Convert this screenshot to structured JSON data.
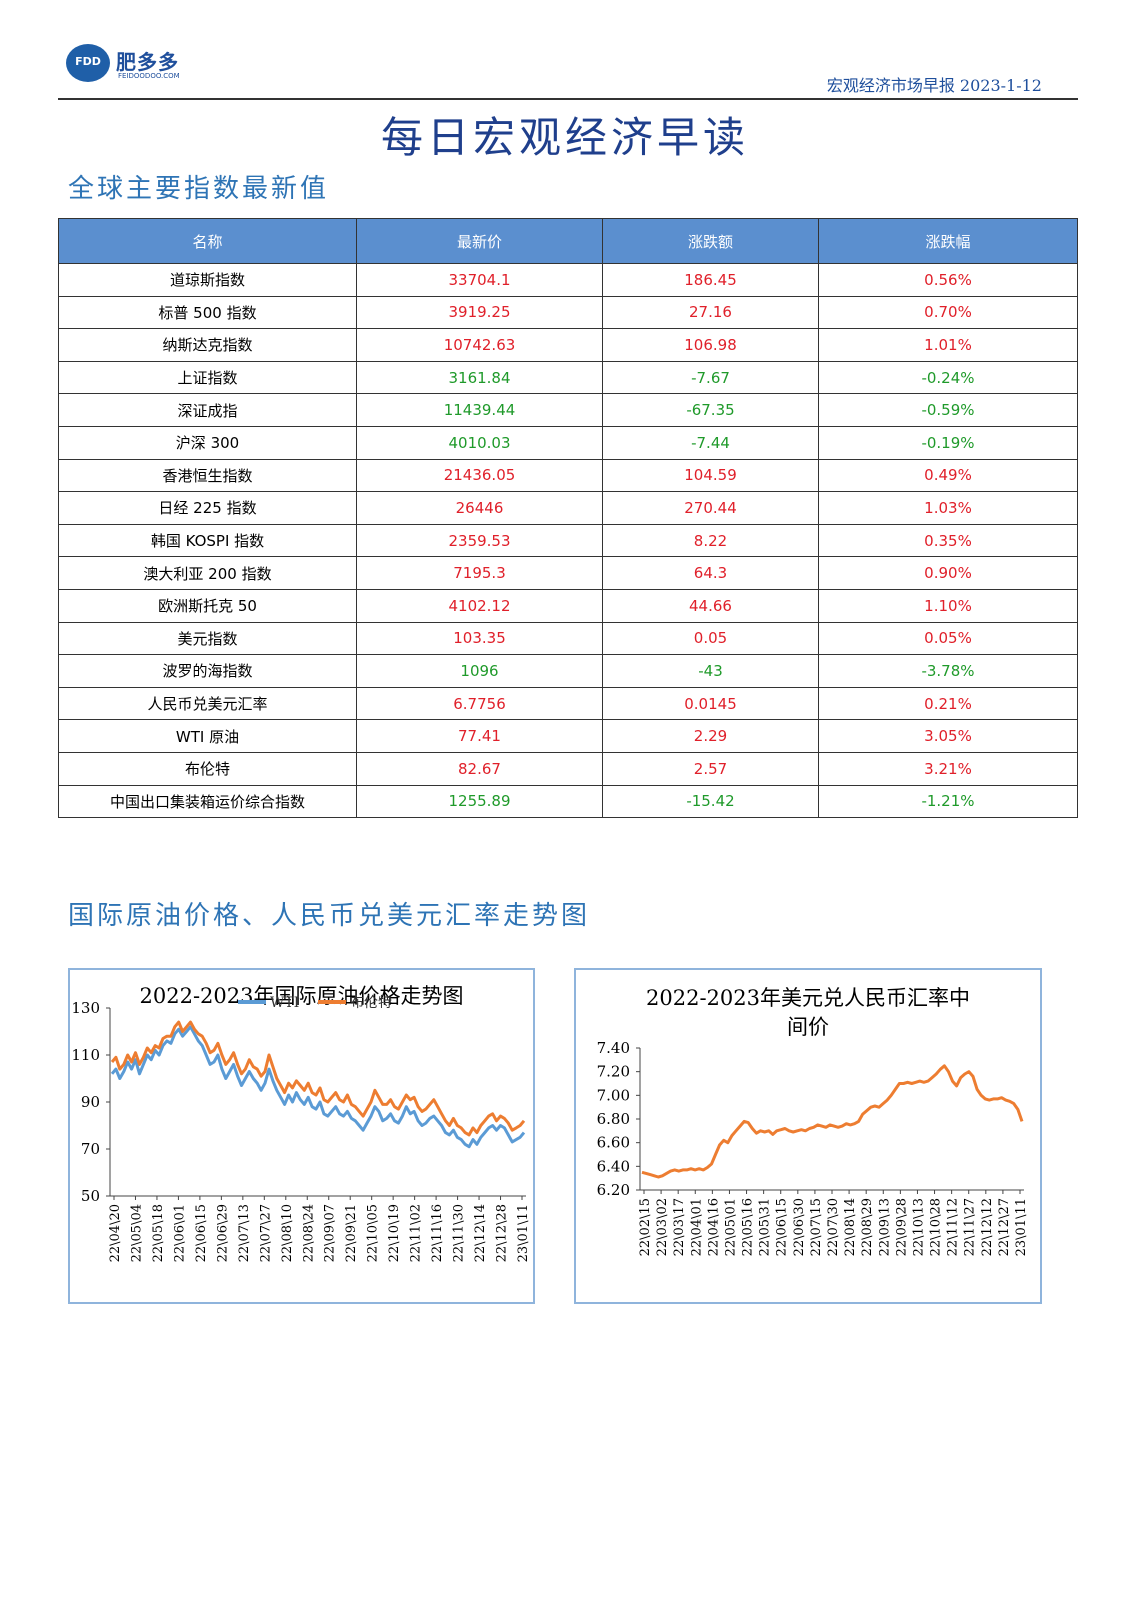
{
  "header": {
    "logo_cn": "肥多多",
    "logo_en": "FEIDOODOO.COM",
    "logo_badge": "FDD",
    "report_tag": "宏观经济市场早报 2023-1-12"
  },
  "title": "每日宏观经济早读",
  "section1": {
    "title": "全球主要指数最新值"
  },
  "table": {
    "headers": [
      "名称",
      "最新价",
      "涨跌额",
      "涨跌幅"
    ],
    "rows": [
      {
        "name": "道琼斯指数",
        "price": "33704.1",
        "change": "186.45",
        "pct": "0.56%",
        "dir": "up"
      },
      {
        "name": "标普 500 指数",
        "price": "3919.25",
        "change": "27.16",
        "pct": "0.70%",
        "dir": "up"
      },
      {
        "name": "纳斯达克指数",
        "price": "10742.63",
        "change": "106.98",
        "pct": "1.01%",
        "dir": "up"
      },
      {
        "name": "上证指数",
        "price": "3161.84",
        "change": "-7.67",
        "pct": "-0.24%",
        "dir": "down"
      },
      {
        "name": "深证成指",
        "price": "11439.44",
        "change": "-67.35",
        "pct": "-0.59%",
        "dir": "down"
      },
      {
        "name": "沪深 300",
        "price": "4010.03",
        "change": "-7.44",
        "pct": "-0.19%",
        "dir": "down"
      },
      {
        "name": "香港恒生指数",
        "price": "21436.05",
        "change": "104.59",
        "pct": "0.49%",
        "dir": "up"
      },
      {
        "name": "日经 225 指数",
        "price": "26446",
        "change": "270.44",
        "pct": "1.03%",
        "dir": "up"
      },
      {
        "name": "韩国 KOSPI 指数",
        "price": "2359.53",
        "change": "8.22",
        "pct": "0.35%",
        "dir": "up"
      },
      {
        "name": "澳大利亚 200 指数",
        "price": "7195.3",
        "change": "64.3",
        "pct": "0.90%",
        "dir": "up"
      },
      {
        "name": "欧洲斯托克 50",
        "price": "4102.12",
        "change": "44.66",
        "pct": "1.10%",
        "dir": "up"
      },
      {
        "name": "美元指数",
        "price": "103.35",
        "change": "0.05",
        "pct": "0.05%",
        "dir": "up"
      },
      {
        "name": "波罗的海指数",
        "price": "1096",
        "change": "-43",
        "pct": "-3.78%",
        "dir": "down"
      },
      {
        "name": "人民币兑美元汇率",
        "price": "6.7756",
        "change": "0.0145",
        "pct": "0.21%",
        "dir": "up"
      },
      {
        "name": "WTI 原油",
        "price": "77.41",
        "change": "2.29",
        "pct": "3.05%",
        "dir": "up"
      },
      {
        "name": "布伦特",
        "price": "82.67",
        "change": "2.57",
        "pct": "3.21%",
        "dir": "up"
      },
      {
        "name": "中国出口集装箱运价综合指数",
        "price": "1255.89",
        "change": "-15.42",
        "pct": "-1.21%",
        "dir": "down"
      }
    ],
    "colors": {
      "up": "#e0202a",
      "down": "#1f9a2a",
      "header_bg": "#5b8fcf"
    }
  },
  "section2": {
    "title": "国际原油价格、人民币兑美元汇率走势图"
  },
  "chart_data": [
    {
      "type": "line",
      "title": "2022-2023年国际原油价格走势图",
      "ylim": [
        50,
        130
      ],
      "yticks": [
        50,
        70,
        90,
        110,
        130
      ],
      "xticks": [
        "22\\04\\20",
        "22\\05\\04",
        "22\\05\\18",
        "22\\06\\01",
        "22\\06\\15",
        "22\\06\\29",
        "22\\07\\13",
        "22\\07\\27",
        "22\\08\\10",
        "22\\08\\24",
        "22\\09\\07",
        "22\\09\\21",
        "22\\10\\05",
        "22\\10\\19",
        "22\\11\\02",
        "22\\11\\16",
        "22\\11\\30",
        "22\\12\\14",
        "22\\12\\28",
        "23\\01\\11"
      ],
      "grid": false,
      "legend": "top",
      "series": [
        {
          "name": "WTI",
          "color": "#5b9bd5",
          "values": [
            102,
            104,
            100,
            103,
            107,
            104,
            108,
            102,
            106,
            110,
            108,
            112,
            110,
            114,
            116,
            115,
            119,
            121,
            118,
            120,
            122,
            119,
            116,
            114,
            110,
            106,
            107,
            110,
            104,
            100,
            103,
            106,
            101,
            97,
            100,
            103,
            100,
            98,
            95,
            98,
            104,
            99,
            95,
            92,
            89,
            93,
            90,
            94,
            91,
            89,
            92,
            88,
            87,
            90,
            85,
            84,
            86,
            88,
            85,
            84,
            86,
            83,
            82,
            80,
            78,
            81,
            84,
            88,
            86,
            82,
            83,
            85,
            82,
            81,
            84,
            88,
            85,
            86,
            82,
            80,
            81,
            83,
            84,
            82,
            80,
            77,
            76,
            78,
            75,
            74,
            72,
            71,
            74,
            72,
            75,
            77,
            79,
            80,
            78,
            80,
            79,
            76,
            73,
            74,
            75,
            77
          ]
        },
        {
          "name": "布伦特",
          "color": "#ed7d31",
          "values": [
            107,
            109,
            104,
            106,
            110,
            107,
            111,
            106,
            109,
            113,
            111,
            114,
            113,
            117,
            118,
            118,
            122,
            124,
            120,
            122,
            124,
            121,
            119,
            118,
            115,
            111,
            112,
            115,
            110,
            106,
            108,
            111,
            106,
            102,
            104,
            108,
            105,
            104,
            101,
            103,
            110,
            105,
            100,
            97,
            94,
            98,
            96,
            99,
            97,
            95,
            98,
            94,
            93,
            96,
            91,
            90,
            92,
            94,
            91,
            90,
            93,
            89,
            88,
            86,
            84,
            87,
            90,
            95,
            92,
            89,
            89,
            91,
            88,
            87,
            90,
            93,
            91,
            92,
            88,
            86,
            87,
            89,
            91,
            88,
            85,
            82,
            80,
            83,
            80,
            79,
            77,
            76,
            79,
            77,
            80,
            82,
            84,
            85,
            82,
            84,
            83,
            81,
            78,
            79,
            80,
            82
          ]
        }
      ]
    },
    {
      "type": "line",
      "title": "2022-2023年美元兑人民币汇率中间价",
      "ylim": [
        6.2,
        7.4
      ],
      "yticks": [
        "6.20",
        "6.40",
        "6.60",
        "6.80",
        "7.00",
        "7.20",
        "7.40"
      ],
      "xticks": [
        "22\\02\\15",
        "22\\03\\02",
        "22\\03\\17",
        "22\\04\\01",
        "22\\04\\16",
        "22\\05\\01",
        "22\\05\\16",
        "22\\05\\31",
        "22\\06\\15",
        "22\\06\\30",
        "22\\07\\15",
        "22\\07\\30",
        "22\\08\\14",
        "22\\08\\29",
        "22\\09\\13",
        "22\\09\\28",
        "22\\10\\13",
        "22\\10\\28",
        "22\\11\\12",
        "22\\11\\27",
        "22\\12\\12",
        "22\\12\\27",
        "23\\01\\11"
      ],
      "grid": false,
      "series": [
        {
          "name": "",
          "color": "#ed7d31",
          "values": [
            6.35,
            6.34,
            6.33,
            6.32,
            6.31,
            6.32,
            6.34,
            6.36,
            6.37,
            6.36,
            6.37,
            6.37,
            6.38,
            6.37,
            6.38,
            6.37,
            6.39,
            6.42,
            6.5,
            6.58,
            6.62,
            6.6,
            6.66,
            6.7,
            6.74,
            6.78,
            6.77,
            6.72,
            6.68,
            6.7,
            6.69,
            6.7,
            6.67,
            6.7,
            6.71,
            6.72,
            6.7,
            6.69,
            6.7,
            6.71,
            6.7,
            6.72,
            6.73,
            6.75,
            6.74,
            6.73,
            6.75,
            6.74,
            6.73,
            6.74,
            6.76,
            6.75,
            6.76,
            6.78,
            6.84,
            6.87,
            6.9,
            6.91,
            6.9,
            6.93,
            6.96,
            7.0,
            7.05,
            7.1,
            7.1,
            7.11,
            7.1,
            7.11,
            7.12,
            7.11,
            7.12,
            7.15,
            7.18,
            7.22,
            7.25,
            7.2,
            7.12,
            7.08,
            7.15,
            7.18,
            7.2,
            7.16,
            7.05,
            7.0,
            6.97,
            6.96,
            6.97,
            6.97,
            6.98,
            6.96,
            6.95,
            6.93,
            6.88,
            6.78
          ]
        }
      ]
    }
  ]
}
